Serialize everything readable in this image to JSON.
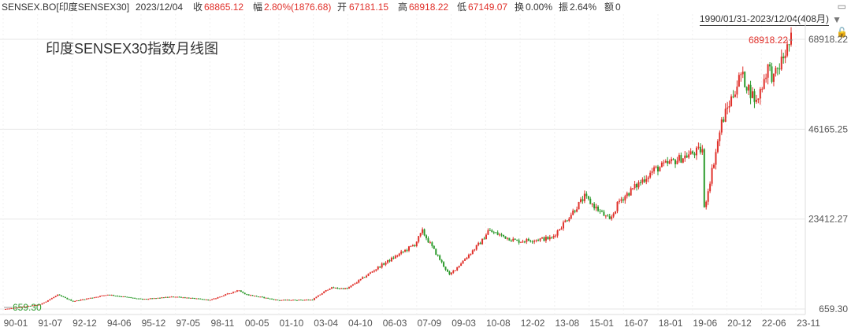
{
  "header": {
    "symbol": "SENSEX.BO[印度SENSEX30]",
    "date": "2023/12/04",
    "close_label": "收",
    "close_value": "68865.12",
    "change_label": "幅",
    "change_value": "2.80%(1876.68)",
    "open_label": "开",
    "open_value": "67181.15",
    "high_label": "高",
    "high_value": "68918.22",
    "low_label": "低",
    "low_value": "67149.07",
    "turnover_label": "换",
    "turnover_value": "0.00%",
    "amplitude_label": "振",
    "amplitude_value": "2.64%",
    "amount_label": "额",
    "amount_value": "0"
  },
  "range_label": "1990/01/31-2023/12/04(408月)",
  "icons": [
    "window-icon",
    "chevron-down-icon",
    "lock-icon"
  ],
  "colors": {
    "up": "#e0302a",
    "down": "#2b9a2b",
    "grid": "#e6e6e6",
    "text": "#333333"
  },
  "chart_data": {
    "type": "candlestick",
    "title": "印度SENSEX30指数月线图",
    "x_ticks": [
      "90-01",
      "91-07",
      "92-12",
      "94-06",
      "95-12",
      "97-05",
      "98-11",
      "00-05",
      "01-10",
      "03-04",
      "04-10",
      "06-03",
      "07-09",
      "09-03",
      "10-08",
      "12-02",
      "13-08",
      "15-01",
      "16-07",
      "18-01",
      "19-06",
      "20-12",
      "22-06",
      "23-11"
    ],
    "y_ticks": [
      "68918.22",
      "46165.25",
      "23412.27",
      "659.30"
    ],
    "ylim": [
      659.3,
      68918.22
    ],
    "xlim": [
      "1990-01",
      "2023-12"
    ],
    "max_label": "68918.22",
    "min_label": "659.30",
    "trend": [
      [
        "1990-01",
        660
      ],
      [
        "1991-07",
        1800
      ],
      [
        "1992-04",
        4200
      ],
      [
        "1992-12",
        2600
      ],
      [
        "1994-06",
        4300
      ],
      [
        "1995-12",
        3100
      ],
      [
        "1997-05",
        3800
      ],
      [
        "1998-11",
        2900
      ],
      [
        "2000-02",
        5500
      ],
      [
        "2000-05",
        4400
      ],
      [
        "2001-10",
        2900
      ],
      [
        "2003-04",
        3000
      ],
      [
        "2004-01",
        6000
      ],
      [
        "2004-10",
        5800
      ],
      [
        "2006-03",
        11500
      ],
      [
        "2007-09",
        17000
      ],
      [
        "2008-01",
        20300
      ],
      [
        "2009-03",
        9200
      ],
      [
        "2010-08",
        18000
      ],
      [
        "2010-11",
        20500
      ],
      [
        "2012-02",
        17800
      ],
      [
        "2013-08",
        18600
      ],
      [
        "2015-01",
        29000
      ],
      [
        "2016-02",
        23000
      ],
      [
        "2016-07",
        28000
      ],
      [
        "2018-01",
        35900
      ],
      [
        "2019-06",
        39500
      ],
      [
        "2020-02",
        41000
      ],
      [
        "2020-03",
        26000
      ],
      [
        "2020-12",
        47800
      ],
      [
        "2021-10",
        60000
      ],
      [
        "2022-06",
        53000
      ],
      [
        "2022-12",
        62000
      ],
      [
        "2023-03",
        58900
      ],
      [
        "2023-12",
        68865
      ]
    ]
  }
}
